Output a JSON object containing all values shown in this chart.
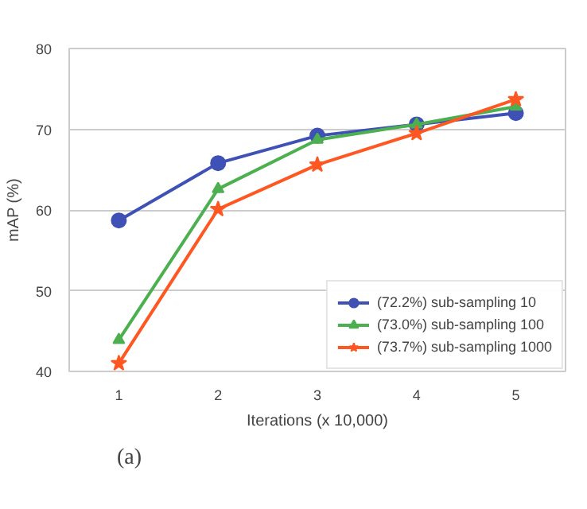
{
  "chart_data": {
    "type": "line",
    "xlabel": "Iterations (x 10,000)",
    "ylabel": "mAP (%)",
    "x": [
      1,
      2,
      3,
      4,
      5
    ],
    "series": [
      {
        "name": "(72.2%) sub-sampling 10",
        "color": "#3f51b5",
        "marker": "circle",
        "values": [
          58.7,
          65.8,
          69.2,
          70.6,
          72.0
        ]
      },
      {
        "name": "(73.0%) sub-sampling 100",
        "color": "#4caf50",
        "marker": "triangle",
        "values": [
          43.9,
          62.6,
          68.7,
          70.6,
          72.8
        ]
      },
      {
        "name": "(73.7%) sub-sampling 1000",
        "color": "#ff5722",
        "marker": "star",
        "values": [
          41.0,
          60.1,
          65.6,
          69.5,
          73.7
        ]
      }
    ],
    "xlim": [
      0.5,
      5.5
    ],
    "xticks": [
      1,
      2,
      3,
      4,
      5
    ],
    "ylim": [
      40,
      80
    ],
    "yticks": [
      40,
      50,
      60,
      70,
      80
    ],
    "grid": "y",
    "legend": "bottom right",
    "line_style": "solid",
    "annotations": [
      "(a)"
    ]
  }
}
